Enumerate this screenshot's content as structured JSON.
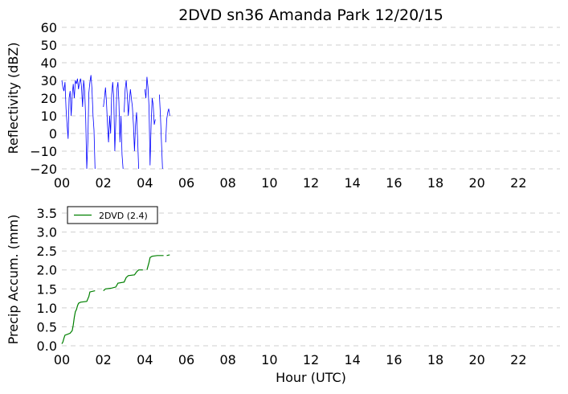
{
  "chart_data": [
    {
      "type": "line",
      "title": "2DVD sn36 Amanda Park 12/20/15",
      "xlabel": "",
      "ylabel": "Reflectivity (dBZ)",
      "xlim": [
        0,
        24
      ],
      "ylim": [
        -20,
        60
      ],
      "xticks": [
        0,
        2,
        4,
        6,
        8,
        10,
        12,
        14,
        16,
        18,
        20,
        22
      ],
      "xtick_labels": [
        "00",
        "02",
        "04",
        "06",
        "08",
        "10",
        "12",
        "14",
        "16",
        "18",
        "20",
        "22"
      ],
      "yticks": [
        -20,
        -10,
        0,
        10,
        20,
        30,
        40,
        50,
        60
      ],
      "ytick_labels": [
        "−20",
        "−10",
        "0",
        "10",
        "20",
        "30",
        "40",
        "50",
        "60"
      ],
      "grid": "horizontal dashed",
      "series": [
        {
          "color": "#0000ff",
          "segments": [
            [
              [
                0.0,
                30
              ],
              [
                0.05,
                26
              ],
              [
                0.1,
                24
              ],
              [
                0.15,
                29
              ],
              [
                0.2,
                14
              ],
              [
                0.25,
                5
              ],
              [
                0.3,
                -3
              ],
              [
                0.35,
                20
              ],
              [
                0.4,
                24
              ],
              [
                0.45,
                10
              ],
              [
                0.5,
                22
              ],
              [
                0.55,
                28
              ],
              [
                0.6,
                20
              ],
              [
                0.65,
                30
              ],
              [
                0.7,
                28
              ],
              [
                0.75,
                31
              ],
              [
                0.8,
                25
              ],
              [
                0.85,
                29
              ],
              [
                0.9,
                31
              ],
              [
                0.95,
                26
              ],
              [
                1.0,
                15
              ],
              [
                1.05,
                30
              ],
              [
                1.1,
                24
              ],
              [
                1.15,
                8
              ],
              [
                1.2,
                -20
              ],
              [
                1.25,
                -5
              ],
              [
                1.3,
                23
              ],
              [
                1.35,
                29
              ],
              [
                1.4,
                33
              ],
              [
                1.45,
                25
              ],
              [
                1.5,
                10
              ],
              [
                1.55,
                2
              ],
              [
                1.6,
                -20
              ]
            ],
            [
              [
                2.0,
                15
              ],
              [
                2.05,
                20
              ],
              [
                2.1,
                26
              ],
              [
                2.15,
                18
              ],
              [
                2.2,
                5
              ],
              [
                2.25,
                -5
              ],
              [
                2.3,
                10
              ],
              [
                2.35,
                0
              ],
              [
                2.4,
                22
              ],
              [
                2.45,
                29
              ],
              [
                2.5,
                20
              ],
              [
                2.55,
                -10
              ],
              [
                2.6,
                8
              ],
              [
                2.65,
                25
              ],
              [
                2.7,
                29
              ],
              [
                2.75,
                18
              ],
              [
                2.8,
                -5
              ],
              [
                2.85,
                10
              ],
              [
                2.9,
                -12
              ],
              [
                2.95,
                -20
              ]
            ],
            [
              [
                3.0,
                12
              ],
              [
                3.05,
                25
              ],
              [
                3.1,
                30
              ],
              [
                3.15,
                22
              ],
              [
                3.2,
                10
              ],
              [
                3.25,
                18
              ],
              [
                3.3,
                25
              ],
              [
                3.35,
                20
              ],
              [
                3.4,
                15
              ],
              [
                3.45,
                5
              ],
              [
                3.5,
                -10
              ],
              [
                3.55,
                5
              ],
              [
                3.6,
                12
              ],
              [
                3.65,
                -3
              ],
              [
                3.7,
                -20
              ]
            ],
            [
              [
                4.0,
                25
              ],
              [
                4.05,
                20
              ],
              [
                4.1,
                32
              ],
              [
                4.15,
                26
              ],
              [
                4.2,
                15
              ],
              [
                4.25,
                -18
              ],
              [
                4.3,
                5
              ],
              [
                4.35,
                20
              ],
              [
                4.4,
                16
              ],
              [
                4.45,
                5
              ],
              [
                4.5,
                8
              ]
            ],
            [
              [
                4.7,
                22
              ],
              [
                4.75,
                10
              ],
              [
                4.8,
                -5
              ],
              [
                4.85,
                -20
              ]
            ],
            [
              [
                5.0,
                -5
              ],
              [
                5.05,
                8
              ],
              [
                5.1,
                12
              ],
              [
                5.15,
                14
              ],
              [
                5.2,
                10
              ]
            ]
          ]
        }
      ]
    },
    {
      "type": "line",
      "title": "",
      "xlabel": "Hour (UTC)",
      "ylabel": "Precip Accum. (mm)",
      "xlim": [
        0,
        24
      ],
      "ylim": [
        0,
        3.5
      ],
      "xticks": [
        0,
        2,
        4,
        6,
        8,
        10,
        12,
        14,
        16,
        18,
        20,
        22
      ],
      "xtick_labels": [
        "00",
        "02",
        "04",
        "06",
        "08",
        "10",
        "12",
        "14",
        "16",
        "18",
        "20",
        "22"
      ],
      "yticks": [
        0,
        0.5,
        1.0,
        1.5,
        2.0,
        2.5,
        3.0,
        3.5
      ],
      "ytick_labels": [
        "0.0",
        "0.5",
        "1.0",
        "1.5",
        "2.0",
        "2.5",
        "3.0",
        "3.5"
      ],
      "grid": "horizontal dashed",
      "legend": "top-left",
      "series": [
        {
          "name": "2DVD (2.4)",
          "color": "#008000",
          "segments": [
            [
              [
                0.0,
                0.05
              ],
              [
                0.05,
                0.1
              ],
              [
                0.1,
                0.2
              ],
              [
                0.15,
                0.28
              ],
              [
                0.25,
                0.3
              ],
              [
                0.4,
                0.33
              ],
              [
                0.5,
                0.4
              ],
              [
                0.55,
                0.55
              ],
              [
                0.6,
                0.75
              ],
              [
                0.65,
                0.9
              ],
              [
                0.7,
                0.95
              ],
              [
                0.75,
                1.05
              ],
              [
                0.8,
                1.12
              ],
              [
                0.9,
                1.15
              ],
              [
                1.2,
                1.17
              ],
              [
                1.3,
                1.3
              ],
              [
                1.35,
                1.42
              ],
              [
                1.6,
                1.45
              ]
            ],
            [
              [
                2.0,
                1.45
              ],
              [
                2.1,
                1.5
              ],
              [
                2.4,
                1.52
              ],
              [
                2.6,
                1.55
              ],
              [
                2.7,
                1.65
              ],
              [
                3.0,
                1.68
              ],
              [
                3.1,
                1.8
              ],
              [
                3.2,
                1.85
              ],
              [
                3.5,
                1.87
              ],
              [
                3.6,
                1.95
              ],
              [
                3.7,
                2.0
              ],
              [
                3.9,
                2.0
              ]
            ],
            [
              [
                4.1,
                2.0
              ],
              [
                4.2,
                2.2
              ],
              [
                4.25,
                2.33
              ],
              [
                4.35,
                2.36
              ],
              [
                4.6,
                2.38
              ],
              [
                4.9,
                2.38
              ]
            ],
            [
              [
                5.05,
                2.38
              ],
              [
                5.2,
                2.4
              ]
            ]
          ]
        }
      ]
    }
  ]
}
